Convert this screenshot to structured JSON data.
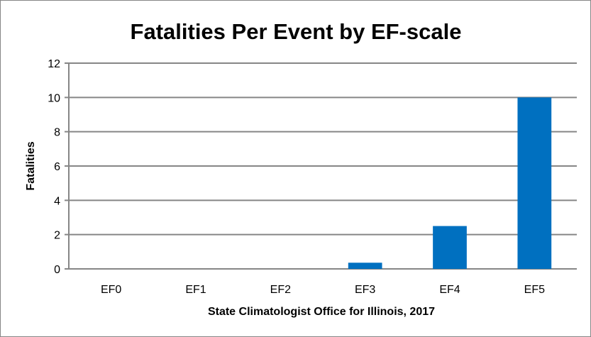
{
  "chart_data": {
    "type": "bar",
    "title": "Fatalities Per Event by EF-scale",
    "xlabel": "State Climatologist Office for Illinois, 2017",
    "ylabel": "Fatalities",
    "categories": [
      "EF0",
      "EF1",
      "EF2",
      "EF3",
      "EF4",
      "EF5"
    ],
    "values": [
      0,
      0,
      0,
      0.36,
      2.5,
      10.0
    ],
    "ylim": [
      0,
      12
    ],
    "yticks": [
      0,
      2,
      4,
      6,
      8,
      10,
      12
    ],
    "grid": true,
    "legend": "none",
    "bar_color": "#0070C0",
    "grid_color": "#868686"
  }
}
